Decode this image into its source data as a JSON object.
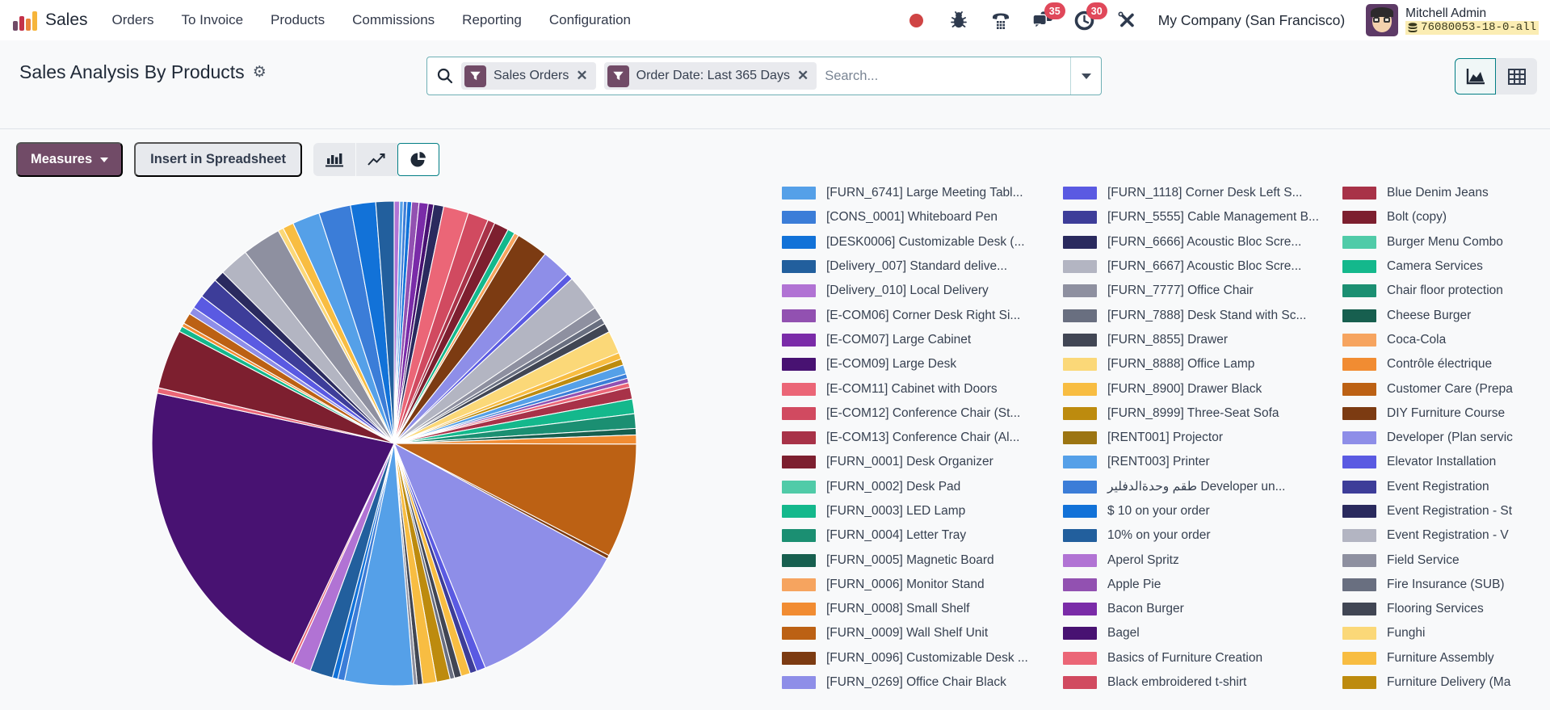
{
  "nav": {
    "app_name": "Sales",
    "items": [
      "Orders",
      "To Invoice",
      "Products",
      "Commissions",
      "Reporting",
      "Configuration"
    ],
    "company": "My Company (San Francisco)",
    "user": {
      "name": "Mitchell Admin",
      "db_label": "76080053-18-0-all"
    },
    "badges": {
      "messages": "35",
      "activities": "30"
    }
  },
  "control_panel": {
    "title": "Sales Analysis By Products",
    "filters": [
      {
        "label": "Sales Orders"
      },
      {
        "label": "Order Date: Last 365 Days"
      }
    ],
    "search_placeholder": "Search..."
  },
  "toolbar": {
    "measures_label": "Measures",
    "insert_label": "Insert in Spreadsheet"
  },
  "colors": {
    "primary_purple": "#714B67",
    "accent_teal": "#017e84",
    "badge_red": "#e0485a",
    "record_dot_red": "#cf4444",
    "db_highlight_yellow": "#fbedb3"
  },
  "chart_data": {
    "type": "pie",
    "legend_position": "right",
    "palette": [
      "#55a0e8",
      "#3b7dd8",
      "#1272d8",
      "#225f9d",
      "#b173d4",
      "#9251b1",
      "#7a2ba8",
      "#481272",
      "#eb6677",
      "#d14a60",
      "#a83248",
      "#7d1f2f",
      "#50cba8",
      "#14b88c",
      "#1b8f72",
      "#175f4f",
      "#f6a45f",
      "#f18c32",
      "#bc6114",
      "#7c3b12",
      "#8e8ee8",
      "#5a5ae2",
      "#3d3d99",
      "#2a2a5e",
      "#b3b5c2",
      "#8e90a0",
      "#696f80",
      "#414654",
      "#fbd878",
      "#f8bd42",
      "#bd8b0e",
      "#9c7512"
    ],
    "legend_labels": [
      "[FURN_6741] Large Meeting Tabl...",
      "[CONS_0001] Whiteboard Pen",
      "[DESK0006] Customizable Desk (...",
      "[Delivery_007] Standard delive...",
      "[Delivery_010] Local Delivery",
      "[E-COM06] Corner Desk Right Si...",
      "[E-COM07] Large Cabinet",
      "[E-COM09] Large Desk",
      "[E-COM11] Cabinet with Doors",
      "[E-COM12] Conference Chair (St...",
      "[E-COM13] Conference Chair (Al...",
      "[FURN_0001] Desk Organizer",
      "[FURN_0002] Desk Pad",
      "[FURN_0003] LED Lamp",
      "[FURN_0004] Letter Tray",
      "[FURN_0005] Magnetic Board",
      "[FURN_0006] Monitor Stand",
      "[FURN_0008] Small Shelf",
      "[FURN_0009] Wall Shelf Unit",
      "[FURN_0096] Customizable Desk ...",
      "[FURN_0269] Office Chair Black",
      "[FURN_1118] Corner Desk Left S...",
      "[FURN_5555] Cable Management B...",
      "[FURN_6666] Acoustic Bloc Scre...",
      "[FURN_6667] Acoustic Bloc Scre...",
      "[FURN_7777] Office Chair",
      "[FURN_7888] Desk Stand with Sc...",
      "[FURN_8855] Drawer",
      "[FURN_8888] Office Lamp",
      "[FURN_8900] Drawer Black",
      "[FURN_8999] Three-Seat Sofa",
      "[RENT001] Projector",
      "[RENT003] Printer",
      "طقم وحدةالدفلير Developer un...",
      "$ 10 on your order",
      "10% on your order",
      "Aperol Spritz",
      "Apple Pie",
      "Bacon Burger",
      "Bagel",
      "Basics of Furniture Creation",
      "Black embroidered t-shirt",
      "Blue Denim Jeans",
      "Bolt (copy)",
      "Burger Menu Combo",
      "Camera Services",
      "Chair floor protection",
      "Cheese Burger",
      "Coca-Cola",
      "Contrôle électrique",
      "Customer Care (Prepa",
      "DIY Furniture Course",
      "Developer (Plan servic",
      "Elevator Installation",
      "Event Registration",
      "Event Registration - St",
      "Event Registration - V",
      "Field Service",
      "Fire Insurance (SUB)",
      "Flooring Services",
      "Funghi",
      "Furniture Assembly",
      "Furniture Delivery (Ma"
    ],
    "slices_clockwise_from_top_color_index_and_estimated_degrees": [
      [
        4,
        1.2
      ],
      [
        0,
        0.8
      ],
      [
        1,
        0.8
      ],
      [
        2,
        1.0
      ],
      [
        5,
        1.6
      ],
      [
        6,
        2.0
      ],
      [
        7,
        1.2
      ],
      [
        23,
        2.2
      ],
      [
        8,
        5.5
      ],
      [
        9,
        4.5
      ],
      [
        10,
        1.6
      ],
      [
        11,
        3.2
      ],
      [
        13,
        1.6
      ],
      [
        16,
        1.0
      ],
      [
        19,
        7.0
      ],
      [
        20,
        6.5
      ],
      [
        21,
        1.4
      ],
      [
        24,
        8.0
      ],
      [
        25,
        2.6
      ],
      [
        26,
        1.4
      ],
      [
        27,
        2.0
      ],
      [
        28,
        5.0
      ],
      [
        29,
        1.4
      ],
      [
        30,
        1.4
      ],
      [
        0,
        2.0
      ],
      [
        1,
        1.0
      ],
      [
        5,
        1.0
      ],
      [
        8,
        1.0
      ],
      [
        10,
        2.6
      ],
      [
        13,
        3.2
      ],
      [
        14,
        3.2
      ],
      [
        15,
        1.4
      ],
      [
        17,
        2.0
      ],
      [
        18,
        25
      ],
      [
        19,
        0.8
      ],
      [
        20,
        36
      ],
      [
        21,
        2.0
      ],
      [
        22,
        1.5
      ],
      [
        29,
        2.0
      ],
      [
        27,
        1.5
      ],
      [
        26,
        1.0
      ],
      [
        30,
        3.0
      ],
      [
        29,
        3.0
      ],
      [
        27,
        1.2
      ],
      [
        25,
        0.8
      ],
      [
        0,
        15
      ],
      [
        1,
        1.5
      ],
      [
        2,
        1.2
      ],
      [
        3,
        5.0
      ],
      [
        4,
        4.0
      ],
      [
        8,
        0.6
      ],
      [
        7,
        70
      ],
      [
        8,
        1.2
      ],
      [
        11,
        13
      ],
      [
        13,
        1.2
      ],
      [
        17,
        0.8
      ],
      [
        18,
        2.4
      ],
      [
        20,
        1.6
      ],
      [
        21,
        3.0
      ],
      [
        22,
        4.5
      ],
      [
        23,
        2.4
      ],
      [
        24,
        6.5
      ],
      [
        25,
        8.5
      ],
      [
        28,
        1.2
      ],
      [
        29,
        2.4
      ],
      [
        0,
        6.0
      ],
      [
        1,
        7.0
      ],
      [
        2,
        5.5
      ],
      [
        3,
        4.0
      ]
    ]
  }
}
